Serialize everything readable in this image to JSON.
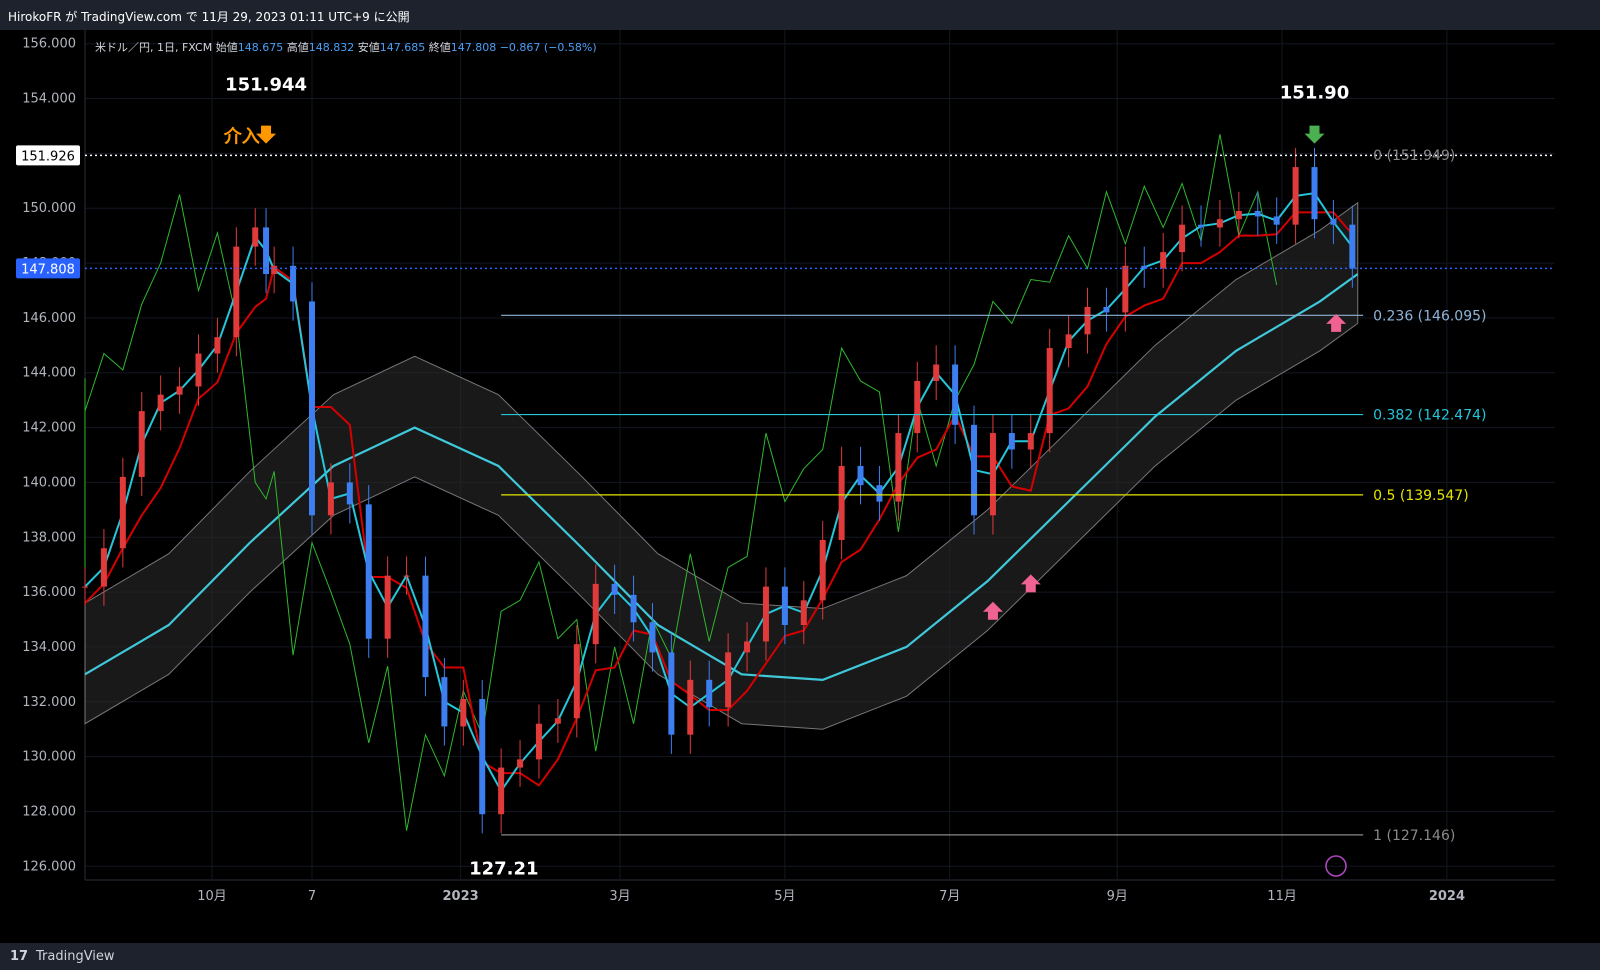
{
  "header": {
    "publish_text": "HirokoFR が TradingView.com で 11月 29, 2023 01:11 UTC+9 に公開"
  },
  "legend": {
    "symbol": "米ドル／円, 1日, FXCM",
    "open_label": "始値",
    "open": "148.675",
    "high_label": "高値",
    "high": "148.832",
    "low_label": "安値",
    "low": "147.685",
    "close_label": "終値",
    "close": "147.808",
    "change": "−0.867 (−0.58%)"
  },
  "footer": {
    "brand": "TradingView"
  },
  "colors": {
    "background": "#000000",
    "up_candle": "#e03a3a",
    "down_candle": "#3d7ff0",
    "tenkan": "#26c6da",
    "kijun": "#d50000",
    "chikou": "#2eb82e",
    "sma": "#3fc8d9",
    "fib_0236": "#90b4d8",
    "fib_0382": "#26c6da",
    "fib_05": "#e5e500",
    "fib_1": "#8a8a8a",
    "arrow_orange": "#ff9800",
    "arrow_green": "#4caf50",
    "arrow_pink": "#f06292"
  },
  "chart_data": {
    "type": "candlestick",
    "symbol": "USDJPY",
    "interval": "1D",
    "y_range": [
      125.5,
      156.5
    ],
    "y_ticks": [
      "156.000",
      "154.000",
      "152.000",
      "150.000",
      "148.000",
      "146.000",
      "144.000",
      "142.000",
      "140.000",
      "138.000",
      "136.000",
      "134.000",
      "132.000",
      "130.000",
      "128.000",
      "126.000"
    ],
    "x_ticks": [
      "10月",
      "7",
      "2023",
      "3月",
      "5月",
      "7月",
      "9月",
      "11月",
      "2024"
    ],
    "x_tick_dates": [
      "2022-10-01",
      "2022-11-07",
      "2023-01-01",
      "2023-03-01",
      "2023-05-01",
      "2023-07-01",
      "2023-09-01",
      "2023-11-01",
      "2024-01-01"
    ],
    "date_range": [
      "2022-08-15",
      "2024-02-10"
    ],
    "price_badges": [
      {
        "value": "151.926",
        "style": "white"
      },
      {
        "value": "147.808",
        "style": "blue"
      }
    ],
    "horizontal_lines": [
      {
        "value": 151.926,
        "style": "dotted",
        "color": "#ffffff"
      },
      {
        "value": 147.808,
        "style": "dotted",
        "color": "#2962ff"
      }
    ],
    "fibonacci": {
      "start_date": "2023-01-16",
      "end_date": "2023-12-01",
      "levels": [
        {
          "ratio": "0",
          "price": 151.949,
          "label": "0 (151.949)",
          "color": "#8a8a8a",
          "draw_line": false
        },
        {
          "ratio": "0.236",
          "price": 146.095,
          "label": "0.236 (146.095)",
          "color": "#90b4d8",
          "draw_line": true
        },
        {
          "ratio": "0.382",
          "price": 142.474,
          "label": "0.382 (142.474)",
          "color": "#26c6da",
          "draw_line": true
        },
        {
          "ratio": "0.5",
          "price": 139.547,
          "label": "0.5 (139.547)",
          "color": "#e5e500",
          "draw_line": true
        },
        {
          "ratio": "1",
          "price": 127.146,
          "label": "1 (127.146)",
          "color": "#8a8a8a",
          "draw_line": true
        }
      ]
    },
    "annotations": [
      {
        "text": "151.944",
        "date": "2022-10-21",
        "price": 154.3,
        "color": "#ffffff"
      },
      {
        "text": "介入",
        "date": "2022-10-12",
        "price": 152.4,
        "color": "#ff9800"
      },
      {
        "text": "151.90",
        "date": "2023-11-13",
        "price": 154.0,
        "color": "#ffffff"
      },
      {
        "text": "127.21",
        "date": "2023-01-17",
        "price": 125.7,
        "color": "#ffffff"
      }
    ],
    "arrows": [
      {
        "date": "2022-10-21",
        "price": 152.5,
        "direction": "down",
        "color": "#ff9800"
      },
      {
        "date": "2023-11-13",
        "price": 152.5,
        "direction": "down",
        "color": "#4caf50"
      },
      {
        "date": "2023-07-17",
        "price": 135.5,
        "direction": "up",
        "color": "#f06292"
      },
      {
        "date": "2023-07-31",
        "price": 136.5,
        "direction": "up",
        "color": "#f06292"
      },
      {
        "date": "2023-11-21",
        "price": 146.0,
        "direction": "up",
        "color": "#f06292"
      }
    ],
    "candles_close": [
      [
        "2022-08-15",
        136.2
      ],
      [
        "2022-08-22",
        137.6
      ],
      [
        "2022-08-29",
        140.2
      ],
      [
        "2022-09-05",
        142.6
      ],
      [
        "2022-09-12",
        143.2
      ],
      [
        "2022-09-19",
        143.5
      ],
      [
        "2022-09-26",
        144.7
      ],
      [
        "2022-10-03",
        145.3
      ],
      [
        "2022-10-10",
        148.6
      ],
      [
        "2022-10-17",
        149.3
      ],
      [
        "2022-10-21",
        147.6
      ],
      [
        "2022-10-24",
        147.9
      ],
      [
        "2022-10-31",
        146.6
      ],
      [
        "2022-11-07",
        138.8
      ],
      [
        "2022-11-14",
        140.0
      ],
      [
        "2022-11-21",
        139.2
      ],
      [
        "2022-11-28",
        134.3
      ],
      [
        "2022-12-05",
        136.6
      ],
      [
        "2022-12-12",
        136.6
      ],
      [
        "2022-12-19",
        132.9
      ],
      [
        "2022-12-26",
        131.1
      ],
      [
        "2023-01-02",
        132.1
      ],
      [
        "2023-01-09",
        127.9
      ],
      [
        "2023-01-16",
        129.6
      ],
      [
        "2023-01-23",
        129.9
      ],
      [
        "2023-01-30",
        131.2
      ],
      [
        "2023-02-06",
        131.4
      ],
      [
        "2023-02-13",
        134.1
      ],
      [
        "2023-02-20",
        136.3
      ],
      [
        "2023-02-27",
        135.9
      ],
      [
        "2023-03-06",
        134.9
      ],
      [
        "2023-03-13",
        133.8
      ],
      [
        "2023-03-20",
        130.8
      ],
      [
        "2023-03-27",
        132.8
      ],
      [
        "2023-04-03",
        131.8
      ],
      [
        "2023-04-10",
        133.8
      ],
      [
        "2023-04-17",
        134.2
      ],
      [
        "2023-04-24",
        136.2
      ],
      [
        "2023-05-01",
        134.8
      ],
      [
        "2023-05-08",
        135.7
      ],
      [
        "2023-05-15",
        137.9
      ],
      [
        "2023-05-22",
        140.6
      ],
      [
        "2023-05-29",
        139.9
      ],
      [
        "2023-06-05",
        139.3
      ],
      [
        "2023-06-12",
        141.8
      ],
      [
        "2023-06-19",
        143.7
      ],
      [
        "2023-06-26",
        144.3
      ],
      [
        "2023-07-03",
        142.1
      ],
      [
        "2023-07-10",
        138.8
      ],
      [
        "2023-07-17",
        141.8
      ],
      [
        "2023-07-24",
        141.2
      ],
      [
        "2023-07-31",
        141.8
      ],
      [
        "2023-08-07",
        144.9
      ],
      [
        "2023-08-14",
        145.4
      ],
      [
        "2023-08-21",
        146.4
      ],
      [
        "2023-08-28",
        146.2
      ],
      [
        "2023-09-04",
        147.9
      ],
      [
        "2023-09-11",
        147.8
      ],
      [
        "2023-09-18",
        148.4
      ],
      [
        "2023-09-25",
        149.4
      ],
      [
        "2023-10-02",
        149.3
      ],
      [
        "2023-10-09",
        149.6
      ],
      [
        "2023-10-16",
        149.9
      ],
      [
        "2023-10-23",
        149.7
      ],
      [
        "2023-10-30",
        149.4
      ],
      [
        "2023-11-06",
        151.5
      ],
      [
        "2023-11-13",
        149.6
      ],
      [
        "2023-11-20",
        149.4
      ],
      [
        "2023-11-27",
        147.8
      ]
    ],
    "series": [
      {
        "key": "tenkan",
        "color": "#26c6da"
      },
      {
        "key": "kijun",
        "color": "#d50000"
      },
      {
        "key": "chikou",
        "color": "#2eb82e"
      },
      {
        "key": "sma",
        "color": "#3fc8d9"
      },
      {
        "key": "kumo",
        "color": "#555555"
      }
    ],
    "sma_values": [
      [
        "2022-08-15",
        133.0
      ],
      [
        "2022-09-15",
        134.8
      ],
      [
        "2022-10-15",
        137.8
      ],
      [
        "2022-11-15",
        140.6
      ],
      [
        "2022-12-15",
        142.0
      ],
      [
        "2023-01-15",
        140.6
      ],
      [
        "2023-02-15",
        137.6
      ],
      [
        "2023-03-15",
        134.8
      ],
      [
        "2023-04-15",
        133.0
      ],
      [
        "2023-05-15",
        132.8
      ],
      [
        "2023-06-15",
        134.0
      ],
      [
        "2023-07-15",
        136.4
      ],
      [
        "2023-08-15",
        139.4
      ],
      [
        "2023-09-15",
        142.4
      ],
      [
        "2023-10-15",
        144.8
      ],
      [
        "2023-11-15",
        146.6
      ],
      [
        "2023-11-29",
        147.6
      ]
    ]
  }
}
